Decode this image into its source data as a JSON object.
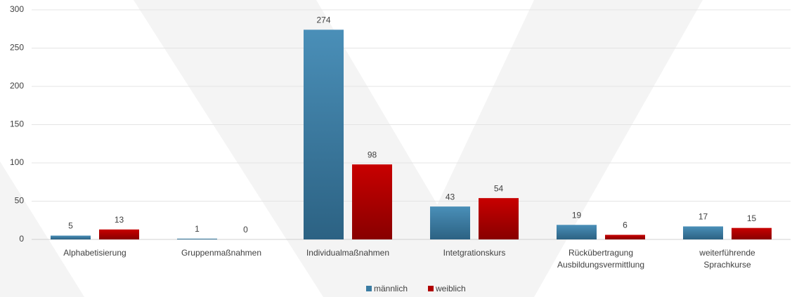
{
  "chart_data": {
    "type": "bar",
    "categories": [
      "Alphabetisierung",
      "Gruppenmaßnahmen",
      "Individualmaßnahmen",
      "Intetgrationskurs",
      "Rückübertragung\nAusbildungsvermittlung",
      "weiterführende\nSprachkurse"
    ],
    "series": [
      {
        "name": "männlich",
        "color": "#3a7ca3",
        "values": [
          5,
          1,
          274,
          43,
          19,
          17
        ]
      },
      {
        "name": "weiblich",
        "color": "#b00000",
        "values": [
          13,
          0,
          98,
          54,
          6,
          15
        ]
      }
    ],
    "ylim": [
      0,
      300
    ],
    "yticks": [
      0,
      50,
      100,
      150,
      200,
      250,
      300
    ],
    "grid": true,
    "legend": "bottom"
  }
}
